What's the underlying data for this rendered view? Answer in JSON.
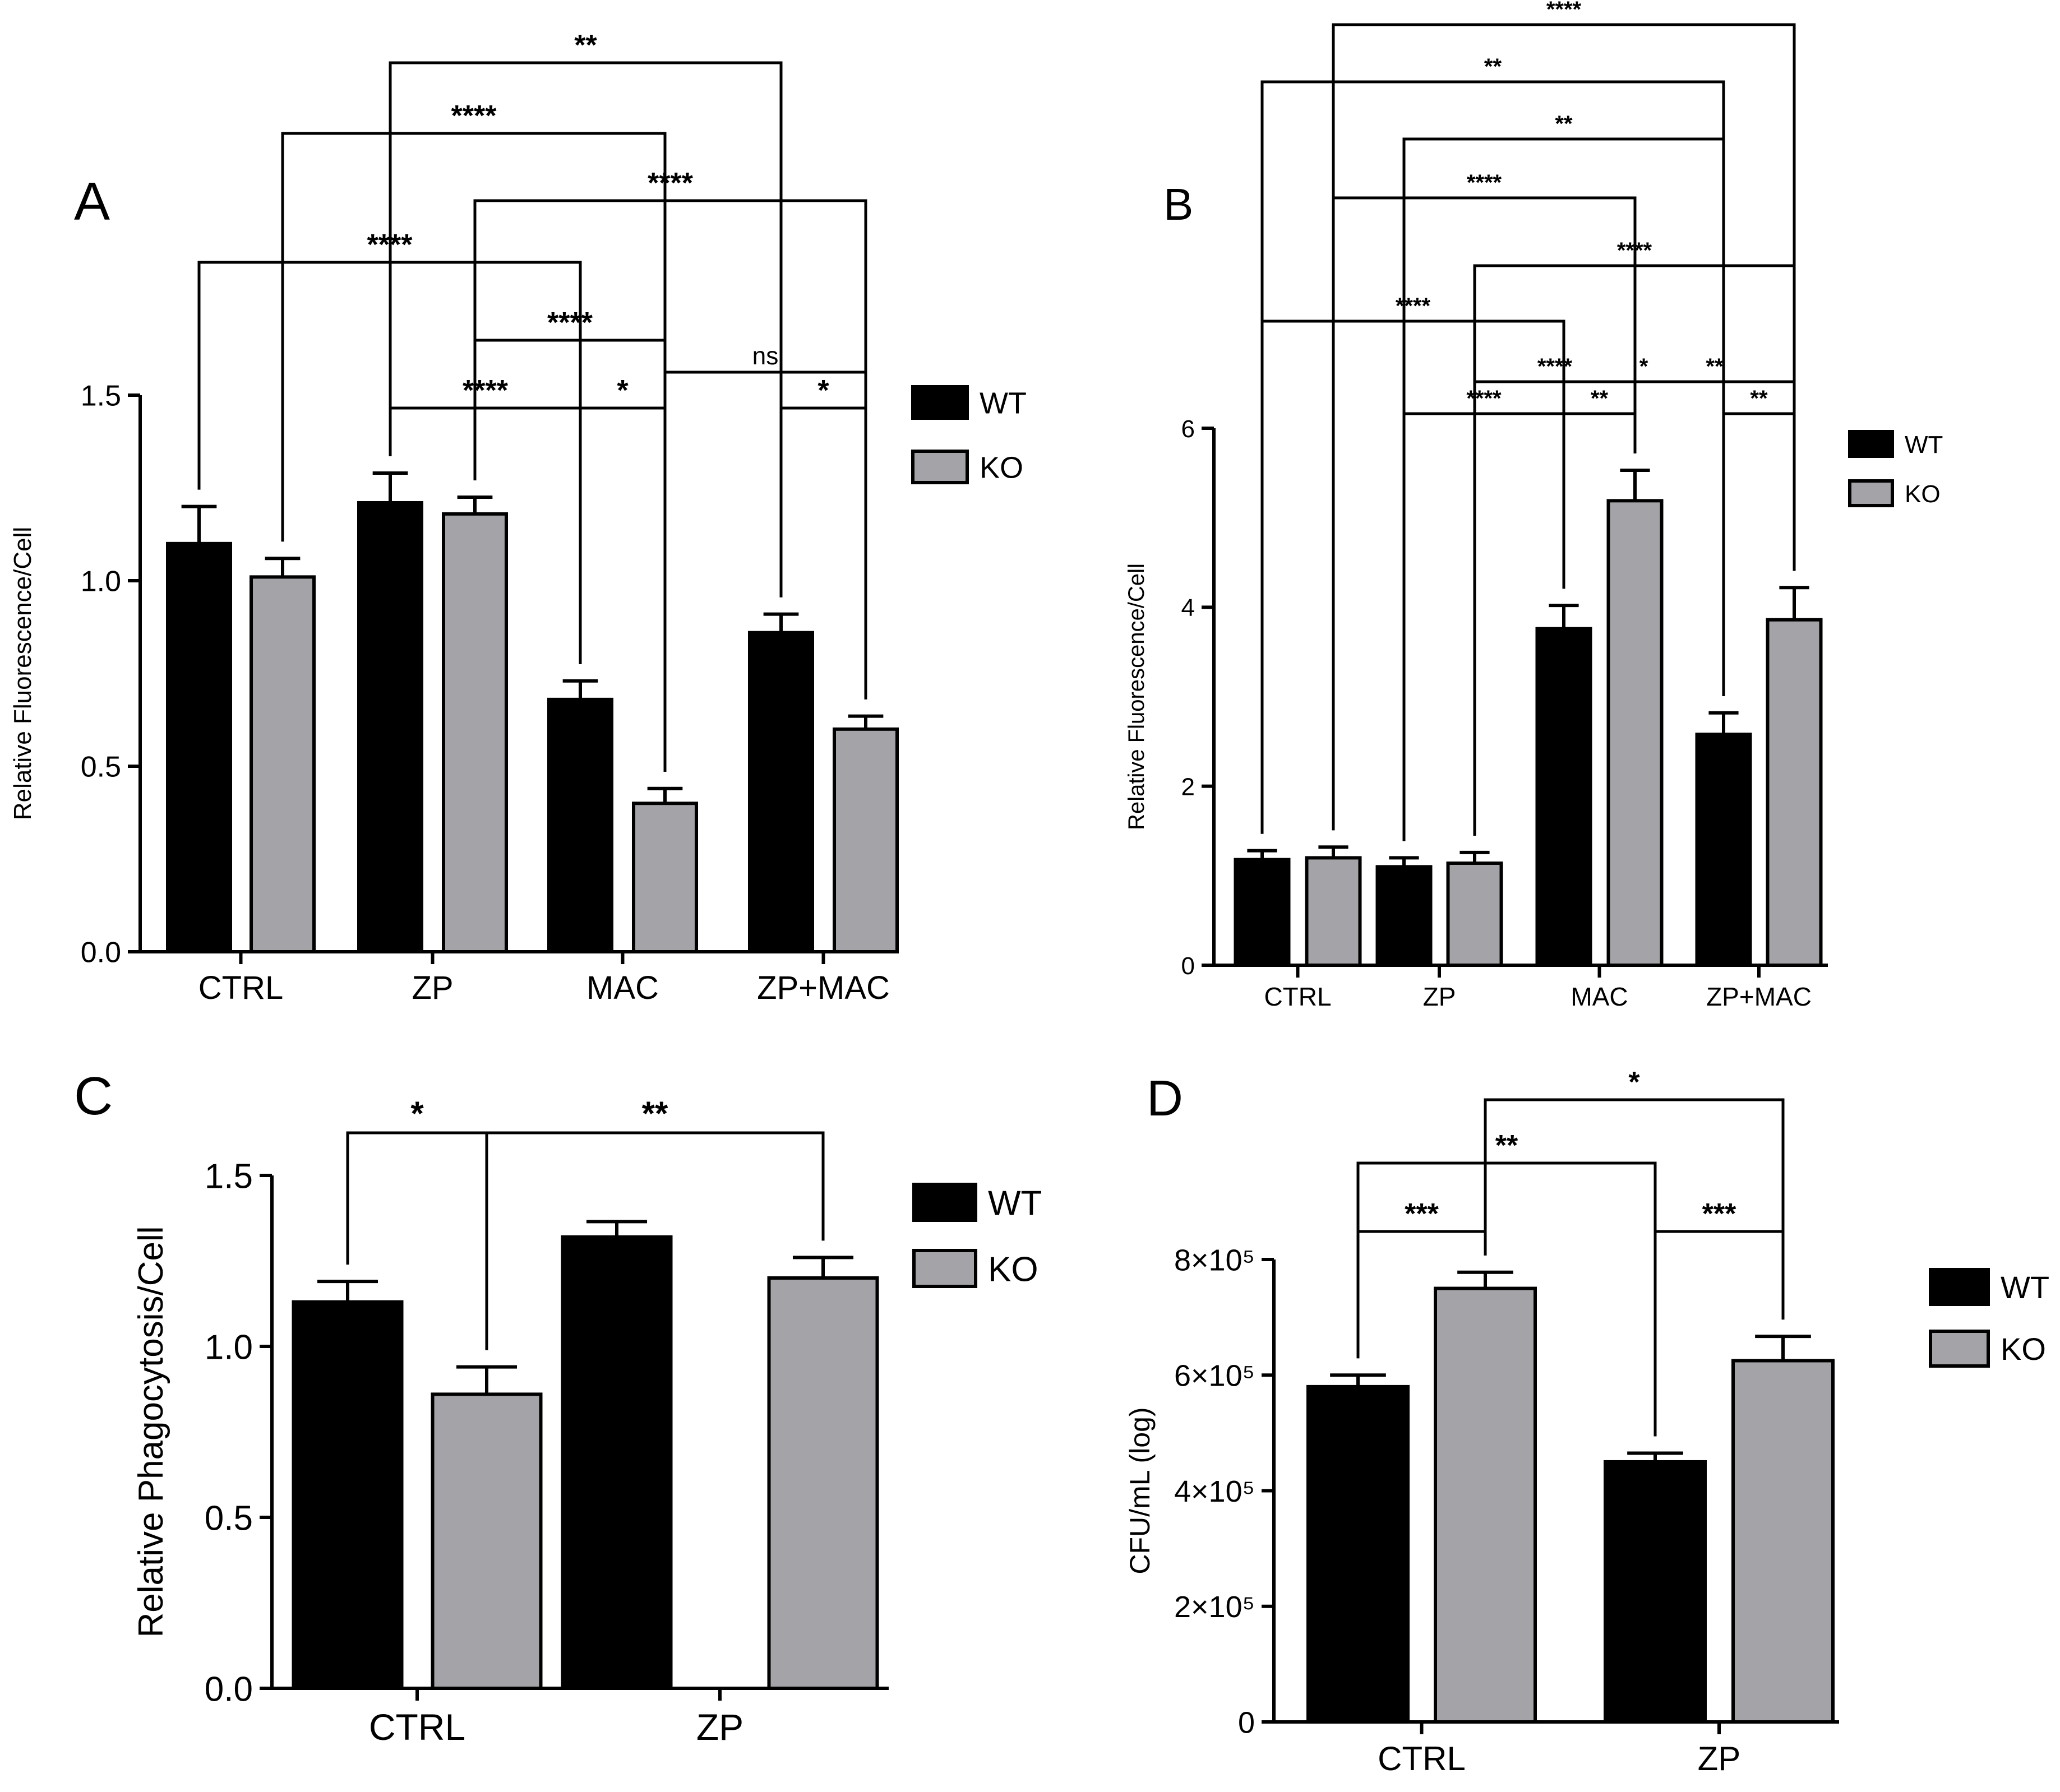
{
  "colors": {
    "WT": "#000000",
    "KO": "#a3a3a8",
    "axis": "#000000"
  },
  "chart_data": [
    {
      "panel_label": "A",
      "type": "bar",
      "categories": [
        "CTRL",
        "ZP",
        "MAC",
        "ZP+MAC"
      ],
      "ylabel": "Relative Fluorescence/Cell",
      "xlabel": "",
      "ylim": [
        0,
        1.5
      ],
      "yticks": [
        "0.0",
        "0.5",
        "1.0",
        "1.5"
      ],
      "legend": {
        "placement": "right",
        "entries": [
          "WT",
          "KO"
        ]
      },
      "series": [
        {
          "name": "WT",
          "values": [
            1.1,
            1.21,
            0.68,
            0.86
          ],
          "errors": [
            0.1,
            0.08,
            0.05,
            0.05
          ]
        },
        {
          "name": "KO",
          "values": [
            1.01,
            1.18,
            0.4,
            0.6
          ],
          "errors": [
            0.05,
            0.045,
            0.04,
            0.035
          ]
        }
      ],
      "comparisons": [
        {
          "a": [
            1,
            0
          ],
          "b": [
            3,
            0
          ],
          "label": "**"
        },
        {
          "a": [
            0,
            1
          ],
          "b": [
            2,
            1
          ],
          "label": "****"
        },
        {
          "a": [
            1,
            1
          ],
          "b": [
            3,
            1
          ],
          "label": "****"
        },
        {
          "a": [
            0,
            0
          ],
          "b": [
            2,
            0
          ],
          "label": "****"
        },
        {
          "a": [
            1,
            1
          ],
          "b": [
            2,
            1
          ],
          "label": "****"
        },
        {
          "a": [
            2,
            1
          ],
          "b": [
            3,
            1
          ],
          "label": "ns"
        },
        {
          "a": [
            1,
            0
          ],
          "b": [
            2,
            0
          ],
          "label": "****"
        },
        {
          "a": [
            2,
            0
          ],
          "b": [
            2,
            1
          ],
          "label": "*"
        },
        {
          "a": [
            3,
            0
          ],
          "b": [
            3,
            1
          ],
          "label": "*"
        }
      ]
    },
    {
      "panel_label": "B",
      "type": "bar",
      "categories": [
        "CTRL",
        "ZP",
        "MAC",
        "ZP+MAC"
      ],
      "ylabel": "Relative Fluorescence/Cell",
      "xlabel": "",
      "ylim": [
        0,
        6
      ],
      "yticks": [
        "0",
        "2",
        "4",
        "6"
      ],
      "legend": {
        "placement": "right",
        "entries": [
          "WT",
          "KO"
        ]
      },
      "series": [
        {
          "name": "WT",
          "values": [
            1.18,
            1.1,
            3.76,
            2.58
          ],
          "errors": [
            0.1,
            0.1,
            0.26,
            0.24
          ]
        },
        {
          "name": "KO",
          "values": [
            1.2,
            1.14,
            5.19,
            3.86
          ],
          "errors": [
            0.12,
            0.12,
            0.34,
            0.36
          ]
        }
      ],
      "comparisons": [
        {
          "a": [
            0,
            1
          ],
          "b": [
            3,
            1
          ],
          "label": "****"
        },
        {
          "a": [
            0,
            0
          ],
          "b": [
            3,
            0
          ],
          "label": "**"
        },
        {
          "a": [
            1,
            0
          ],
          "b": [
            3,
            0
          ],
          "label": "**"
        },
        {
          "a": [
            0,
            1
          ],
          "b": [
            2,
            1
          ],
          "label": "****"
        },
        {
          "a": [
            1,
            1
          ],
          "b": [
            3,
            1
          ],
          "label": "****"
        },
        {
          "a": [
            0,
            0
          ],
          "b": [
            2,
            0
          ],
          "label": "****"
        },
        {
          "a": [
            2,
            0
          ],
          "b": [
            3,
            0
          ],
          "label": "*"
        },
        {
          "a": [
            1,
            1
          ],
          "b": [
            2,
            1
          ],
          "label": "****"
        },
        {
          "a": [
            2,
            1
          ],
          "b": [
            3,
            1
          ],
          "label": "**"
        },
        {
          "a": [
            1,
            0
          ],
          "b": [
            2,
            0
          ],
          "label": "****"
        },
        {
          "a": [
            2,
            0
          ],
          "b": [
            2,
            1
          ],
          "label": "**"
        },
        {
          "a": [
            3,
            0
          ],
          "b": [
            3,
            1
          ],
          "label": "**"
        }
      ]
    },
    {
      "panel_label": "C",
      "type": "bar",
      "categories": [
        "CTRL",
        "ZP"
      ],
      "ylabel": "Relative Phagocytosis/Cell",
      "xlabel": "",
      "ylim": [
        0,
        1.5
      ],
      "yticks": [
        "0.0",
        "0.5",
        "1.0",
        "1.5"
      ],
      "legend": {
        "placement": "right",
        "entries": [
          "WT",
          "KO"
        ]
      },
      "series": [
        {
          "name": "WT",
          "values": [
            1.13,
            1.32
          ],
          "errors": [
            0.06,
            0.045
          ]
        },
        {
          "name": "KO",
          "values": [
            0.86,
            1.2
          ],
          "errors": [
            0.08,
            0.06
          ]
        }
      ],
      "comparisons": [
        {
          "a": [
            0,
            0
          ],
          "b": [
            0,
            1
          ],
          "label": "*"
        },
        {
          "a": [
            0,
            1
          ],
          "b": [
            1,
            1
          ],
          "label": "**"
        }
      ]
    },
    {
      "panel_label": "D",
      "type": "bar",
      "categories": [
        "CTRL",
        "ZP"
      ],
      "ylabel": "CFU/mL (log)",
      "xlabel": "",
      "ylim": [
        0,
        800000
      ],
      "yticks": [
        "0",
        "2×10⁵",
        "4×10⁵",
        "6×10⁵",
        "8×10⁵"
      ],
      "legend": {
        "placement": "right",
        "entries": [
          "WT",
          "KO"
        ]
      },
      "series": [
        {
          "name": "WT",
          "values": [
            580000,
            450000
          ],
          "errors": [
            20000,
            15000
          ]
        },
        {
          "name": "KO",
          "values": [
            750000,
            625000
          ],
          "errors": [
            28000,
            42000
          ]
        }
      ],
      "comparisons": [
        {
          "a": [
            0,
            1
          ],
          "b": [
            1,
            1
          ],
          "label": "*"
        },
        {
          "a": [
            0,
            0
          ],
          "b": [
            1,
            0
          ],
          "label": "**"
        },
        {
          "a": [
            0,
            0
          ],
          "b": [
            0,
            1
          ],
          "label": "***"
        },
        {
          "a": [
            1,
            0
          ],
          "b": [
            1,
            1
          ],
          "label": "***"
        }
      ]
    }
  ]
}
